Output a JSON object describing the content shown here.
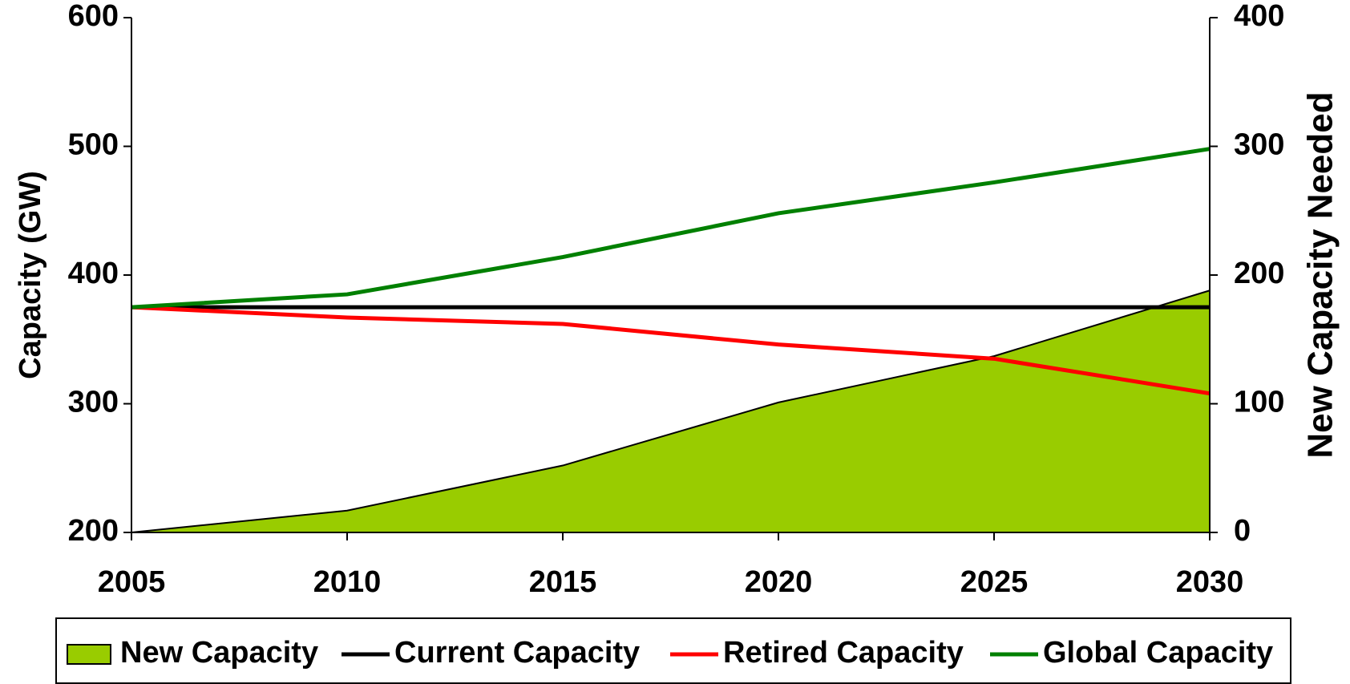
{
  "chart_data": {
    "type": "line",
    "x": [
      2005,
      2010,
      2015,
      2020,
      2025,
      2030
    ],
    "xlim": [
      2005,
      2030
    ],
    "xticks": [
      2005,
      2010,
      2015,
      2020,
      2025,
      2030
    ],
    "ylabel": "Capacity (GW)",
    "ylim": [
      200,
      600
    ],
    "yticks": [
      200,
      300,
      400,
      500,
      600
    ],
    "y2label": "New Capacity Needed",
    "y2lim": [
      0,
      400
    ],
    "y2ticks": [
      0,
      100,
      200,
      300,
      400
    ],
    "series": [
      {
        "name": "New Capacity",
        "type": "area",
        "axis": "y2",
        "color": "#99cc00",
        "values": [
          0,
          17,
          52,
          101,
          137,
          188
        ]
      },
      {
        "name": "Current Capacity",
        "color": "#000000",
        "values": [
          375,
          375,
          375,
          375,
          375,
          375
        ]
      },
      {
        "name": "Retired Capacity",
        "color": "#ff0000",
        "values": [
          375,
          367,
          362,
          346,
          335,
          308
        ]
      },
      {
        "name": "Global Capacity",
        "color": "#008000",
        "values": [
          375,
          385,
          414,
          448,
          472,
          498
        ]
      }
    ]
  }
}
